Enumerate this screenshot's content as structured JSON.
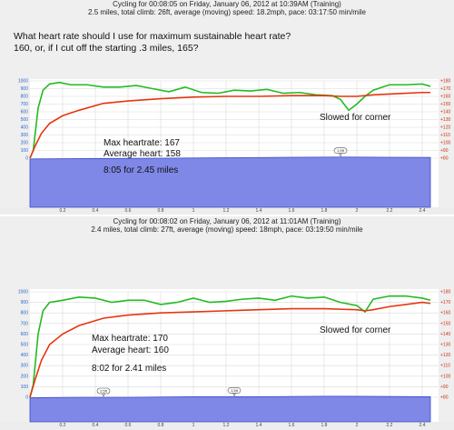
{
  "chart_data": [
    {
      "type": "line",
      "title": "Cycling for 00:08:05 on Friday, January 06, 2012 at 10:39AM (Training)",
      "subtitle": "2.5 miles, total climb: 26ft, average (moving) speed: 18.2mph, pace: 03:17:50 min/mile",
      "question_lines": [
        "What heart rate should I use for maximum sustainable heart rate?",
        "160, or, if I cut off the starting .3 miles, 165?"
      ],
      "annotations": [
        "Slowed for corner",
        "Max heartrate: 167",
        "Average heart: 158",
        "8:05 for 2.45 miles"
      ],
      "x_ticks": [
        "0.2",
        "0.4",
        "0.6",
        "0.8",
        "1",
        "1.2",
        "1.4",
        "1.6",
        "1.8",
        "2",
        "2.2",
        "2.4"
      ],
      "left_ticks": [
        "1000",
        "900",
        "800",
        "700",
        "600",
        "500",
        "400",
        "300",
        "200",
        "100",
        "0"
      ],
      "right_ticks": [
        "+180",
        "+170",
        "+160",
        "+150",
        "+140",
        "+130",
        "+120",
        "+110",
        "+100",
        "+90",
        "+80"
      ],
      "marker_labels": [
        "1.9ft"
      ],
      "markers_x": [
        1.9
      ],
      "xlim": [
        0,
        2.5
      ],
      "ylim_left": [
        0,
        1000
      ],
      "ylim_right": [
        80,
        180
      ],
      "series": [
        {
          "line": "green",
          "axis": "left",
          "x": [
            0,
            0.02,
            0.05,
            0.08,
            0.12,
            0.18,
            0.25,
            0.35,
            0.45,
            0.55,
            0.65,
            0.75,
            0.85,
            0.95,
            1.05,
            1.15,
            1.25,
            1.35,
            1.45,
            1.55,
            1.65,
            1.75,
            1.85,
            1.9,
            1.95,
            2.0,
            2.05,
            2.1,
            2.2,
            2.3,
            2.4,
            2.45
          ],
          "y": [
            0,
            100,
            650,
            880,
            960,
            980,
            950,
            950,
            920,
            920,
            940,
            900,
            860,
            920,
            850,
            840,
            880,
            870,
            890,
            840,
            850,
            820,
            810,
            760,
            620,
            700,
            800,
            880,
            950,
            950,
            960,
            930
          ]
        },
        {
          "line": "red",
          "axis": "right",
          "x": [
            0,
            0.03,
            0.07,
            0.12,
            0.2,
            0.3,
            0.45,
            0.6,
            0.8,
            1.0,
            1.2,
            1.4,
            1.6,
            1.8,
            1.9,
            2.0,
            2.1,
            2.2,
            2.3,
            2.4,
            2.45
          ],
          "y": [
            80,
            95,
            112,
            125,
            135,
            142,
            151,
            154,
            157,
            159,
            160,
            160,
            161,
            161,
            160,
            160,
            162,
            163,
            164,
            165,
            165
          ]
        },
        {
          "line": "elevation",
          "axis": "left",
          "x": [
            0,
            0.4,
            0.8,
            1.2,
            1.6,
            1.9,
            2.2,
            2.45
          ],
          "y": [
            -10,
            -5,
            0,
            5,
            12,
            15,
            12,
            10
          ]
        }
      ]
    },
    {
      "type": "line",
      "title": "Cycling for 00:08:02 on Friday, January 06, 2012 at 11:01AM (Training)",
      "subtitle": "2.4 miles, total climb: 27ft, average (moving) speed: 18mph, pace: 03:19:50 min/mile",
      "question_lines": [],
      "annotations": [
        "Slowed for corner",
        "Max heartrate: 170",
        "Average heart: 160",
        "8:02 for 2.41 miles"
      ],
      "x_ticks": [
        "0.2",
        "0.4",
        "0.6",
        "0.8",
        "1",
        "1.2",
        "1.4",
        "1.6",
        "1.8",
        "2",
        "2.2",
        "2.4"
      ],
      "left_ticks": [
        "1000",
        "900",
        "800",
        "700",
        "600",
        "500",
        "400",
        "300",
        "200",
        "100",
        "0"
      ],
      "right_ticks": [
        "+180",
        "+170",
        "+160",
        "+150",
        "+140",
        "+130",
        "+120",
        "+110",
        "+100",
        "+90",
        "+80"
      ],
      "marker_labels": [
        "2.5ft",
        "1.5ft"
      ],
      "markers_x": [
        0.45,
        1.25
      ],
      "xlim": [
        0,
        2.5
      ],
      "ylim_left": [
        0,
        1000
      ],
      "ylim_right": [
        80,
        180
      ],
      "series": [
        {
          "line": "green",
          "axis": "left",
          "x": [
            0,
            0.02,
            0.05,
            0.08,
            0.12,
            0.2,
            0.3,
            0.4,
            0.5,
            0.6,
            0.7,
            0.8,
            0.9,
            1.0,
            1.1,
            1.2,
            1.3,
            1.4,
            1.5,
            1.6,
            1.7,
            1.8,
            1.9,
            2.0,
            2.05,
            2.1,
            2.2,
            2.3,
            2.4,
            2.45
          ],
          "y": [
            0,
            120,
            600,
            820,
            900,
            920,
            950,
            940,
            900,
            920,
            920,
            880,
            900,
            940,
            900,
            910,
            930,
            940,
            920,
            960,
            940,
            950,
            900,
            870,
            810,
            930,
            960,
            960,
            940,
            920
          ]
        },
        {
          "line": "red",
          "axis": "right",
          "x": [
            0,
            0.03,
            0.07,
            0.12,
            0.2,
            0.3,
            0.45,
            0.6,
            0.8,
            1.0,
            1.2,
            1.4,
            1.6,
            1.8,
            2.0,
            2.05,
            2.1,
            2.2,
            2.3,
            2.4,
            2.45
          ],
          "y": [
            80,
            96,
            115,
            130,
            140,
            148,
            155,
            158,
            160,
            161,
            162,
            163,
            164,
            164,
            163,
            162,
            163,
            166,
            168,
            170,
            169
          ]
        },
        {
          "line": "elevation",
          "axis": "left",
          "x": [
            0,
            0.3,
            0.6,
            1.0,
            1.4,
            1.8,
            2.1,
            2.45
          ],
          "y": [
            -5,
            0,
            0,
            5,
            5,
            10,
            8,
            5
          ]
        }
      ]
    }
  ]
}
